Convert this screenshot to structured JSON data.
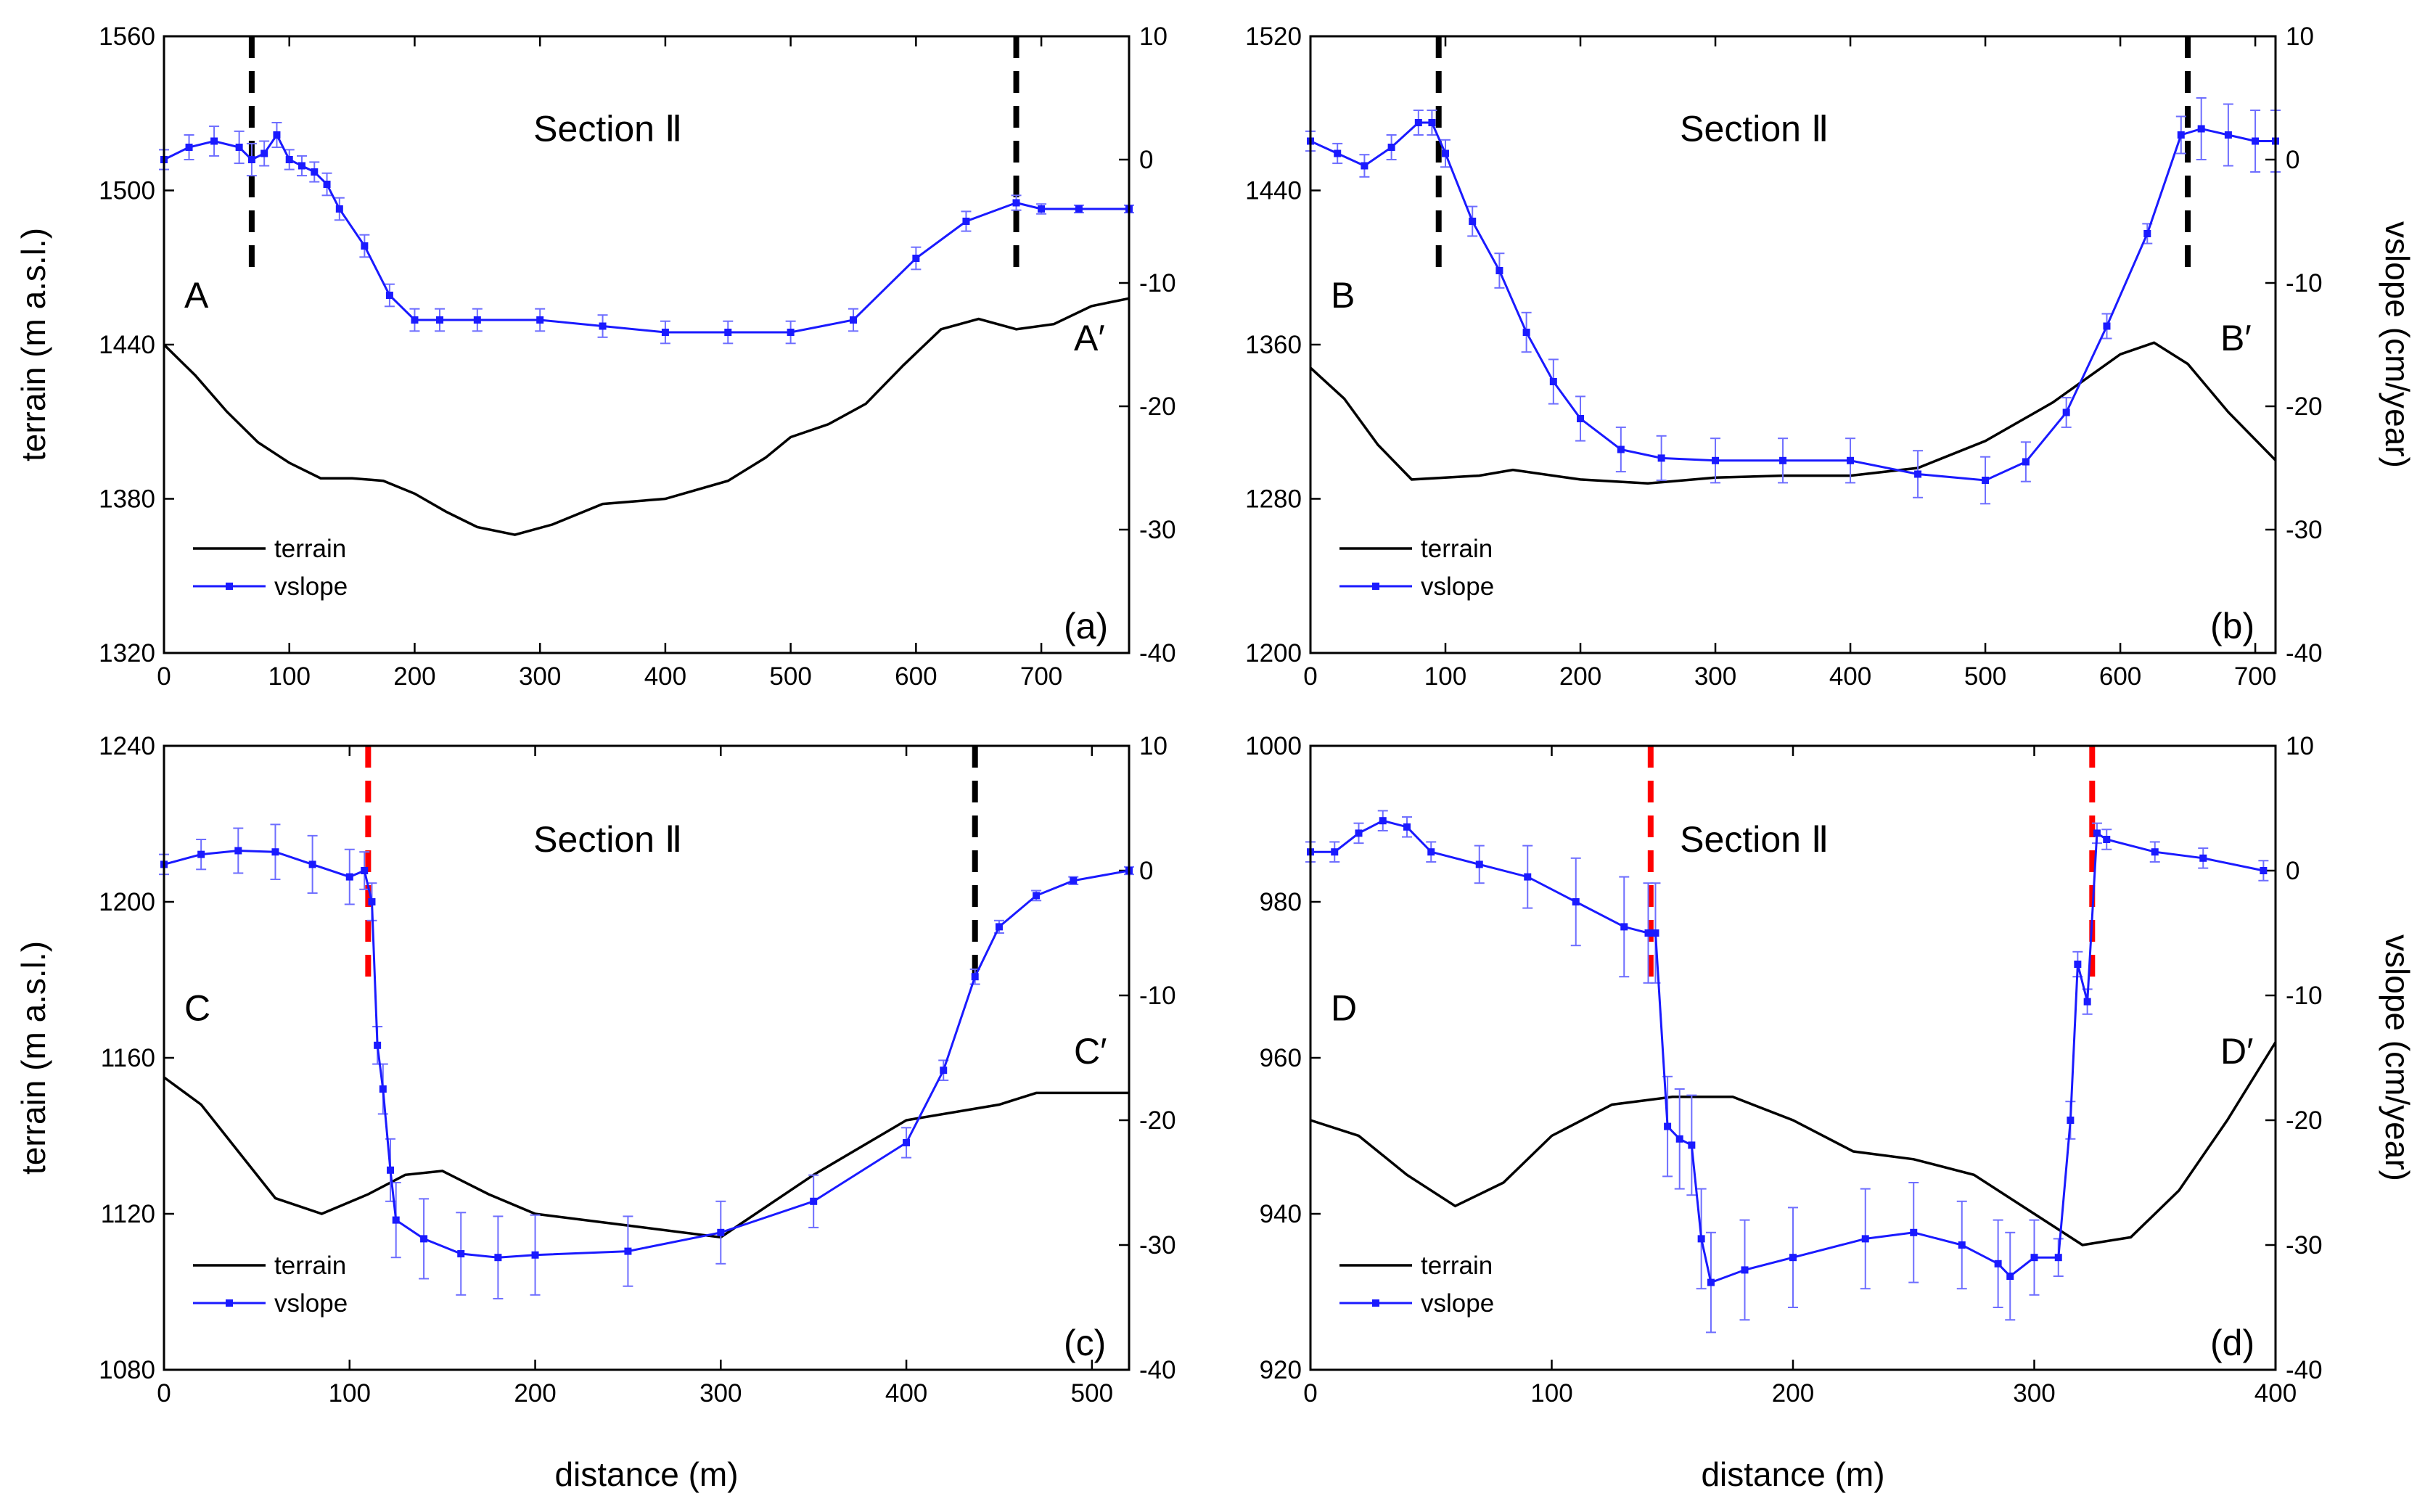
{
  "figure": {
    "x_axis_label": "distance (m)",
    "left_axis_label": "terrain (m a.s.l.)",
    "right_axis_label": "vslope (cm/year)",
    "legend": [
      "terrain",
      "vslope"
    ],
    "colors": {
      "terrain": "#000000",
      "vslope": "#1a1aff",
      "errorbar": "#6e6eff",
      "boundary_black": "#000000",
      "boundary_red": "#ff0000"
    }
  },
  "chart_data": [
    {
      "type": "line",
      "panel": "(a)",
      "section_title": "Section Ⅱ",
      "start_label": "A",
      "end_label": "A′",
      "xlim": [
        0,
        770
      ],
      "x_ticks": [
        0,
        100,
        200,
        300,
        400,
        500,
        600,
        700
      ],
      "y_left_lim": [
        1320,
        1560
      ],
      "y_left_ticks": [
        1320,
        1380,
        1440,
        1500,
        1560
      ],
      "y_right_lim": [
        -40,
        10
      ],
      "y_right_ticks": [
        -40,
        -30,
        -20,
        -10,
        0,
        10
      ],
      "boundaries": [
        {
          "x": 70,
          "color": "black"
        },
        {
          "x": 680,
          "color": "black"
        }
      ],
      "terrain": {
        "x": [
          0,
          25,
          50,
          75,
          100,
          125,
          150,
          175,
          200,
          225,
          250,
          280,
          310,
          350,
          400,
          450,
          480,
          500,
          530,
          560,
          590,
          620,
          650,
          680,
          710,
          740,
          770
        ],
        "y": [
          1440,
          1428,
          1414,
          1402,
          1394,
          1388,
          1388,
          1387,
          1382,
          1375,
          1369,
          1366,
          1370,
          1378,
          1380,
          1387,
          1396,
          1404,
          1409,
          1417,
          1432,
          1446,
          1450,
          1446,
          1448,
          1455,
          1458
        ]
      },
      "vslope": {
        "x": [
          0,
          20,
          40,
          60,
          70,
          80,
          90,
          100,
          110,
          120,
          130,
          140,
          160,
          180,
          200,
          220,
          250,
          300,
          350,
          400,
          450,
          500,
          550,
          600,
          640,
          680,
          700,
          730,
          770
        ],
        "y": [
          0,
          1,
          1.5,
          1,
          0,
          0.5,
          2,
          0,
          -0.5,
          -1,
          -2,
          -4,
          -7,
          -11,
          -13,
          -13,
          -13,
          -13,
          -13.5,
          -14,
          -14,
          -14,
          -13,
          -8,
          -5,
          -3.5,
          -4,
          -4,
          -4
        ],
        "err": [
          0.8,
          1,
          1.2,
          1.3,
          1.3,
          1,
          1,
          0.8,
          0.8,
          0.8,
          0.9,
          0.9,
          0.9,
          0.9,
          0.9,
          0.9,
          0.9,
          0.9,
          0.9,
          0.9,
          0.9,
          0.9,
          0.9,
          0.9,
          0.8,
          0.6,
          0.4,
          0.3,
          0.3
        ]
      }
    },
    {
      "type": "line",
      "panel": "(b)",
      "section_title": "Section Ⅱ",
      "start_label": "B",
      "end_label": "B′",
      "xlim": [
        0,
        715
      ],
      "x_ticks": [
        0,
        100,
        200,
        300,
        400,
        500,
        600,
        700
      ],
      "y_left_lim": [
        1200,
        1520
      ],
      "y_left_ticks": [
        1200,
        1280,
        1360,
        1440,
        1520
      ],
      "y_right_lim": [
        -40,
        10
      ],
      "y_right_ticks": [
        -40,
        -30,
        -20,
        -10,
        0,
        10
      ],
      "boundaries": [
        {
          "x": 95,
          "color": "black"
        },
        {
          "x": 650,
          "color": "black"
        }
      ],
      "terrain": {
        "x": [
          0,
          25,
          50,
          75,
          100,
          125,
          150,
          200,
          250,
          300,
          350,
          400,
          450,
          500,
          550,
          600,
          625,
          650,
          680,
          715
        ],
        "y": [
          1348,
          1332,
          1308,
          1290,
          1291,
          1292,
          1295,
          1290,
          1288,
          1291,
          1292,
          1292,
          1296,
          1310,
          1330,
          1355,
          1361,
          1350,
          1325,
          1300
        ]
      },
      "vslope": {
        "x": [
          0,
          20,
          40,
          60,
          80,
          90,
          100,
          120,
          140,
          160,
          180,
          200,
          230,
          260,
          300,
          350,
          400,
          450,
          500,
          530,
          560,
          590,
          620,
          645,
          660,
          680,
          700,
          715
        ],
        "y": [
          1.5,
          0.5,
          -0.5,
          1,
          3,
          3,
          0.5,
          -5,
          -9,
          -14,
          -18,
          -21,
          -23.5,
          -24.2,
          -24.4,
          -24.4,
          -24.4,
          -25.5,
          -26,
          -24.5,
          -20.5,
          -13.5,
          -6,
          2,
          2.5,
          2,
          1.5,
          1.5
        ],
        "err": [
          0.8,
          0.8,
          0.9,
          1,
          1,
          1,
          1.1,
          1.2,
          1.4,
          1.6,
          1.8,
          1.8,
          1.8,
          1.8,
          1.8,
          1.8,
          1.8,
          1.9,
          1.9,
          1.6,
          1.2,
          1,
          0.8,
          1.5,
          2.5,
          2.5,
          2.5,
          2.5
        ]
      }
    },
    {
      "type": "line",
      "panel": "(c)",
      "section_title": "Section Ⅱ",
      "start_label": "C",
      "end_label": "C′",
      "xlim": [
        0,
        520
      ],
      "x_ticks": [
        0,
        100,
        200,
        300,
        400,
        500
      ],
      "y_left_lim": [
        1080,
        1240
      ],
      "y_left_ticks": [
        1080,
        1120,
        1160,
        1200,
        1240
      ],
      "y_right_lim": [
        -40,
        10
      ],
      "y_right_ticks": [
        -40,
        -30,
        -20,
        -10,
        0,
        10
      ],
      "boundaries": [
        {
          "x": 110,
          "color": "red"
        },
        {
          "x": 437,
          "color": "black"
        }
      ],
      "terrain": {
        "x": [
          0,
          20,
          40,
          60,
          85,
          110,
          130,
          150,
          175,
          200,
          250,
          300,
          350,
          400,
          450,
          470,
          520
        ],
        "y": [
          1155,
          1148,
          1136,
          1124,
          1120,
          1125,
          1130,
          1131,
          1125,
          1120,
          1117,
          1114,
          1130,
          1144,
          1148,
          1151,
          1151
        ]
      },
      "vslope": {
        "x": [
          0,
          20,
          40,
          60,
          80,
          100,
          108,
          112,
          115,
          118,
          122,
          125,
          140,
          160,
          180,
          200,
          250,
          300,
          350,
          400,
          420,
          437,
          450,
          470,
          490,
          520
        ],
        "y": [
          0.5,
          1.3,
          1.6,
          1.5,
          0.5,
          -0.5,
          0,
          -2.5,
          -14,
          -17.5,
          -24,
          -28,
          -29.5,
          -30.7,
          -31,
          -30.8,
          -30.5,
          -29,
          -26.5,
          -21.8,
          -16,
          -8.5,
          -4.5,
          -2,
          -0.8,
          0
        ],
        "err": [
          0.8,
          1.2,
          1.8,
          2.2,
          2.3,
          2.2,
          1.5,
          1.5,
          1.5,
          2,
          2.5,
          3,
          3.2,
          3.3,
          3.3,
          3.2,
          2.8,
          2.5,
          2.1,
          1.2,
          0.8,
          0.6,
          0.5,
          0.4,
          0.3,
          0.3
        ]
      }
    },
    {
      "type": "line",
      "panel": "(d)",
      "section_title": "Section Ⅱ",
      "start_label": "D",
      "end_label": "D′",
      "xlim": [
        0,
        400
      ],
      "x_ticks": [
        0,
        100,
        200,
        300,
        400
      ],
      "y_left_lim": [
        920,
        1000
      ],
      "y_left_ticks": [
        920,
        940,
        960,
        980,
        1000
      ],
      "y_right_lim": [
        -40,
        10
      ],
      "y_right_ticks": [
        -40,
        -30,
        -20,
        -10,
        0,
        10
      ],
      "boundaries": [
        {
          "x": 141,
          "color": "red"
        },
        {
          "x": 324,
          "color": "red"
        }
      ],
      "terrain": {
        "x": [
          0,
          20,
          40,
          60,
          80,
          100,
          125,
          150,
          175,
          200,
          225,
          250,
          275,
          300,
          320,
          340,
          360,
          380,
          400
        ],
        "y": [
          952,
          950,
          945,
          941,
          944,
          950,
          954,
          955,
          955,
          952,
          948,
          947,
          945,
          940,
          936,
          937,
          943,
          952,
          962
        ]
      },
      "vslope": {
        "x": [
          0,
          10,
          20,
          30,
          40,
          50,
          70,
          90,
          110,
          130,
          140,
          143,
          148,
          153,
          158,
          162,
          166,
          180,
          200,
          230,
          250,
          270,
          285,
          290,
          300,
          310,
          315,
          318,
          322,
          326,
          330,
          350,
          370,
          395
        ],
        "y": [
          1.5,
          1.5,
          3,
          4,
          3.5,
          1.5,
          0.5,
          -0.5,
          -2.5,
          -4.5,
          -5,
          -5,
          -20.5,
          -21.5,
          -22,
          -29.5,
          -33,
          -32,
          -31,
          -29.5,
          -29,
          -30,
          -31.5,
          -32.5,
          -31,
          -31,
          -20,
          -7.5,
          -10.5,
          3,
          2.5,
          1.5,
          1,
          0
        ],
        "err": [
          0.8,
          0.8,
          0.8,
          0.8,
          0.8,
          0.8,
          1.5,
          2.5,
          3.5,
          4,
          4,
          4,
          4,
          4,
          4,
          4,
          4,
          4,
          4,
          4,
          4,
          3.5,
          3.5,
          3.5,
          3,
          1.5,
          1.5,
          1,
          1,
          0.8,
          0.8,
          0.8,
          0.8,
          0.8
        ]
      }
    }
  ]
}
